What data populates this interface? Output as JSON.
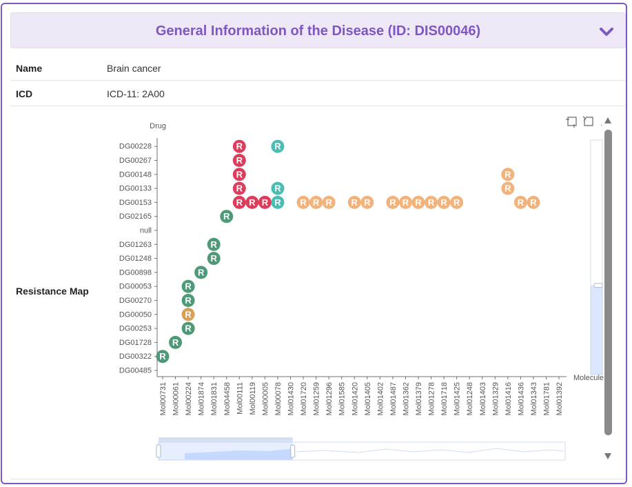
{
  "panel": {
    "title": "General Information of the Disease (ID: DIS00046)",
    "collapse_icon": "chevron-down-icon",
    "accent_color": "#7e57c2",
    "header_bg": "#ede7f6"
  },
  "rows": {
    "name": {
      "label": "Name",
      "value": "Brain cancer"
    },
    "icd": {
      "label": "ICD",
      "value": "ICD-11: 2A00"
    },
    "map": {
      "label": "Resistance Map"
    }
  },
  "toolbox": {
    "zoom_icon": "data-zoom-icon",
    "reset_icon": "zoom-reset-icon"
  },
  "chart_data": {
    "type": "scatter",
    "ylabel": "Drug",
    "xlabel": "Molecule",
    "x_categories": [
      "Mol00731",
      "Mol00061",
      "Mol00224",
      "Mol01874",
      "Mol01831",
      "Mol04458",
      "Mol00111",
      "Mol00119",
      "Mol00005",
      "Mol00078",
      "Mol01430",
      "Mol01720",
      "Mol01259",
      "Mol01296",
      "Mol01585",
      "Mol01420",
      "Mol01405",
      "Mol01402",
      "Mol01487",
      "Mol01362",
      "Mol01379",
      "Mol01278",
      "Mol01718",
      "Mol01425",
      "Mol01248",
      "Mol01403",
      "Mol01329",
      "Mol01416",
      "Mol01436",
      "Mol01343",
      "Mol01781",
      "Mol01392"
    ],
    "y_categories": [
      "DG00485",
      "DG00322",
      "DG01728",
      "DG00253",
      "DG00050",
      "DG00270",
      "DG00053",
      "DG00898",
      "DG01248",
      "DG01263",
      "null",
      "DG02165",
      "DG00153",
      "DG00133",
      "DG00148",
      "DG00267",
      "DG00228"
    ],
    "marker_label": "R",
    "colors": {
      "green": "#4e9a78",
      "red": "#dc3d5c",
      "teal": "#4bbdb5",
      "orange": "#f2b27c",
      "brown": "#d8a057"
    },
    "points": [
      {
        "x": "Mol00731",
        "y": "DG00322",
        "color": "green"
      },
      {
        "x": "Mol00061",
        "y": "DG01728",
        "color": "green"
      },
      {
        "x": "Mol00224",
        "y": "DG00253",
        "color": "green"
      },
      {
        "x": "Mol00224",
        "y": "DG00050",
        "color": "brown"
      },
      {
        "x": "Mol00224",
        "y": "DG00270",
        "color": "green"
      },
      {
        "x": "Mol00224",
        "y": "DG00053",
        "color": "green"
      },
      {
        "x": "Mol01874",
        "y": "DG00898",
        "color": "green"
      },
      {
        "x": "Mol01831",
        "y": "DG01248",
        "color": "green"
      },
      {
        "x": "Mol01831",
        "y": "DG01263",
        "color": "green"
      },
      {
        "x": "Mol04458",
        "y": "DG02165",
        "color": "green"
      },
      {
        "x": "Mol00111",
        "y": "DG00228",
        "color": "red"
      },
      {
        "x": "Mol00111",
        "y": "DG00267",
        "color": "red"
      },
      {
        "x": "Mol00111",
        "y": "DG00148",
        "color": "red"
      },
      {
        "x": "Mol00111",
        "y": "DG00133",
        "color": "red"
      },
      {
        "x": "Mol00111",
        "y": "DG00153",
        "color": "red"
      },
      {
        "x": "Mol00119",
        "y": "DG00153",
        "color": "red"
      },
      {
        "x": "Mol00005",
        "y": "DG00153",
        "color": "red"
      },
      {
        "x": "Mol00078",
        "y": "DG00153",
        "color": "teal"
      },
      {
        "x": "Mol00078",
        "y": "DG00133",
        "color": "teal"
      },
      {
        "x": "Mol00078",
        "y": "DG00228",
        "color": "teal"
      },
      {
        "x": "Mol01720",
        "y": "DG00153",
        "color": "orange"
      },
      {
        "x": "Mol01259",
        "y": "DG00153",
        "color": "orange"
      },
      {
        "x": "Mol01296",
        "y": "DG00153",
        "color": "orange"
      },
      {
        "x": "Mol01420",
        "y": "DG00153",
        "color": "orange"
      },
      {
        "x": "Mol01405",
        "y": "DG00153",
        "color": "orange"
      },
      {
        "x": "Mol01487",
        "y": "DG00153",
        "color": "orange"
      },
      {
        "x": "Mol01362",
        "y": "DG00153",
        "color": "orange"
      },
      {
        "x": "Mol01379",
        "y": "DG00153",
        "color": "orange"
      },
      {
        "x": "Mol01278",
        "y": "DG00153",
        "color": "orange"
      },
      {
        "x": "Mol01718",
        "y": "DG00153",
        "color": "orange"
      },
      {
        "x": "Mol01425",
        "y": "DG00153",
        "color": "orange"
      },
      {
        "x": "Mol01416",
        "y": "DG00148",
        "color": "orange"
      },
      {
        "x": "Mol01416",
        "y": "DG00133",
        "color": "orange"
      },
      {
        "x": "Mol01436",
        "y": "DG00153",
        "color": "orange"
      },
      {
        "x": "Mol01343",
        "y": "DG00153",
        "color": "orange"
      }
    ],
    "datazoom_x": {
      "start": 0,
      "end": 33
    },
    "datazoom_y": {
      "start": 62,
      "end": 100
    }
  }
}
